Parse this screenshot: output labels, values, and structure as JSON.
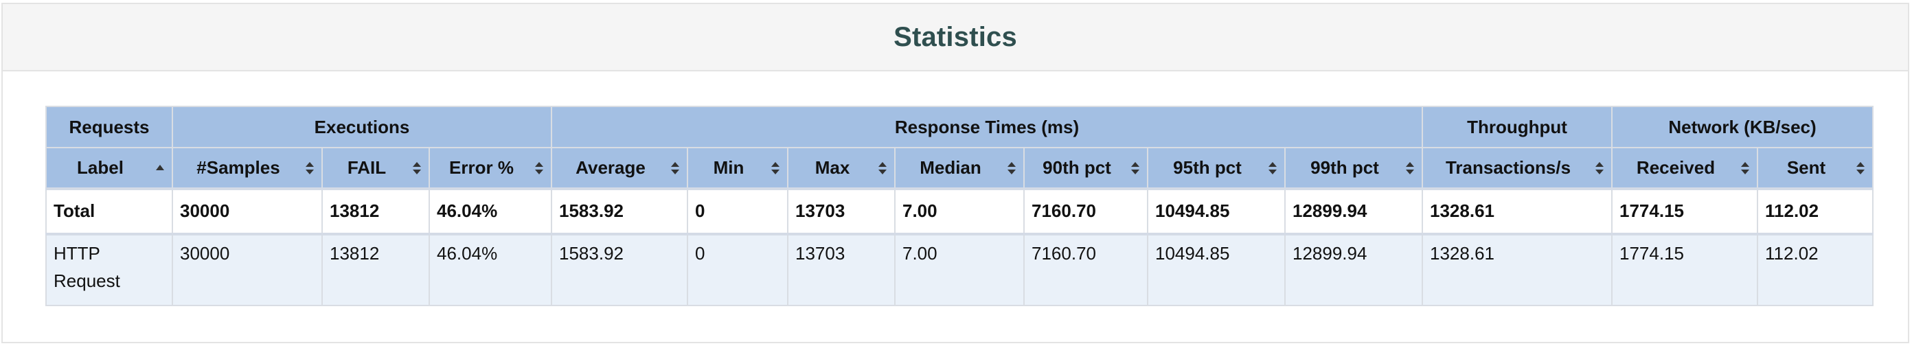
{
  "panel": {
    "title": "Statistics"
  },
  "table": {
    "groups": [
      {
        "label": "Requests",
        "span": 1
      },
      {
        "label": "Executions",
        "span": 3
      },
      {
        "label": "Response Times (ms)",
        "span": 7
      },
      {
        "label": "Throughput",
        "span": 1
      },
      {
        "label": "Network (KB/sec)",
        "span": 2
      }
    ],
    "columns": [
      {
        "label": "Label",
        "sort": "asc"
      },
      {
        "label": "#Samples",
        "sort": "both"
      },
      {
        "label": "FAIL",
        "sort": "both"
      },
      {
        "label": "Error %",
        "sort": "both"
      },
      {
        "label": "Average",
        "sort": "both"
      },
      {
        "label": "Min",
        "sort": "both"
      },
      {
        "label": "Max",
        "sort": "both"
      },
      {
        "label": "Median",
        "sort": "both"
      },
      {
        "label": "90th pct",
        "sort": "both"
      },
      {
        "label": "95th pct",
        "sort": "both"
      },
      {
        "label": "99th pct",
        "sort": "both"
      },
      {
        "label": "Transactions/s",
        "sort": "both"
      },
      {
        "label": "Received",
        "sort": "both"
      },
      {
        "label": "Sent",
        "sort": "both"
      }
    ],
    "total": [
      "Total",
      "30000",
      "13812",
      "46.04%",
      "1583.92",
      "0",
      "13703",
      "7.00",
      "7160.70",
      "10494.85",
      "12899.94",
      "1328.61",
      "1774.15",
      "112.02"
    ],
    "rows": [
      [
        "HTTP Request",
        "30000",
        "13812",
        "46.04%",
        "1583.92",
        "0",
        "13703",
        "7.00",
        "7160.70",
        "10494.85",
        "12899.94",
        "1328.61",
        "1774.15",
        "112.02"
      ]
    ]
  },
  "colors": {
    "header_bg": "#a3bfe3",
    "row_alt_bg": "#eaf1f9",
    "title": "#2f4f4f",
    "panel_heading_bg": "#f5f5f5"
  },
  "icons": {
    "sort_asc": "sort-asc-icon",
    "sort_both": "sort-icon"
  }
}
